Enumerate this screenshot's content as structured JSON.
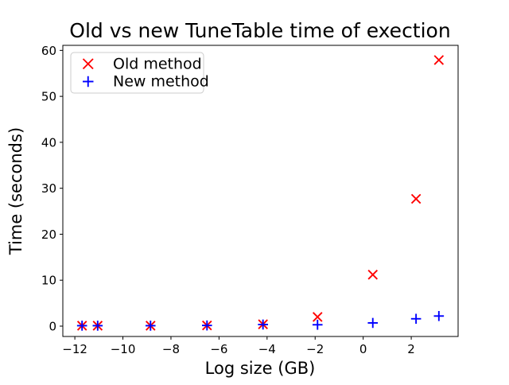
{
  "figure": {
    "background": "#ffffff",
    "spine_color": "#000000",
    "legend_border_color": "#cccccc"
  },
  "chart_data": {
    "type": "scatter",
    "title": "Old vs new TuneTable time of exection",
    "xlabel": "Log size (GB)",
    "ylabel": "Time (seconds)",
    "xlim": [
      -12.5,
      3.95
    ],
    "ylim": [
      -2.25,
      61.1
    ],
    "grid": false,
    "legend_position": "upper left",
    "xtick_values": [
      -12,
      -10,
      -8,
      -6,
      -4,
      -2,
      0,
      2
    ],
    "xtick_labels": [
      "−12",
      "−10",
      "−8",
      "−6",
      "−4",
      "−2",
      "0",
      "2"
    ],
    "ytick_values": [
      0,
      10,
      20,
      30,
      40,
      50,
      60
    ],
    "ytick_labels": [
      "0",
      "10",
      "20",
      "30",
      "40",
      "50",
      "60"
    ],
    "x": [
      -11.7,
      -11.05,
      -8.85,
      -6.5,
      -4.17,
      -1.9,
      0.4,
      2.2,
      3.15
    ],
    "series": [
      {
        "name": "Old method",
        "marker": "x",
        "color": "#ff0000",
        "x": [
          -11.7,
          -11.05,
          -8.85,
          -6.5,
          -4.17,
          -1.9,
          0.4,
          2.2,
          3.15
        ],
        "y": [
          0.1,
          0.1,
          0.1,
          0.15,
          0.4,
          2.0,
          11.2,
          27.7,
          57.9
        ]
      },
      {
        "name": "New method",
        "marker": "+",
        "color": "#0000ff",
        "x": [
          -11.7,
          -11.05,
          -8.85,
          -6.5,
          -4.17,
          -1.9,
          0.4,
          2.2,
          3.15
        ],
        "y": [
          0.1,
          0.1,
          0.1,
          0.15,
          0.35,
          0.3,
          0.7,
          1.6,
          2.2
        ]
      }
    ]
  }
}
